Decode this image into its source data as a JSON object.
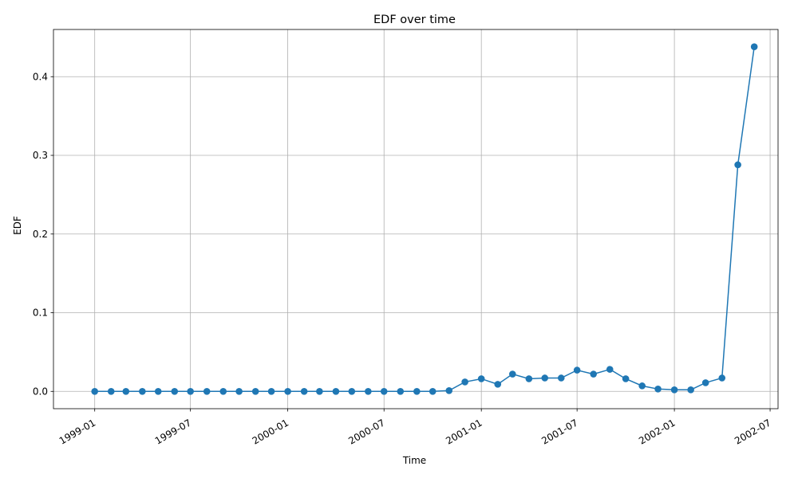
{
  "chart_data": {
    "type": "line",
    "title": "EDF over time",
    "xlabel": "Time",
    "ylabel": "EDF",
    "grid": true,
    "color": "#1f77b4",
    "marker": "circle",
    "xlim": [
      "1998-10-15",
      "2002-07-16"
    ],
    "ylim": [
      -0.022,
      0.46
    ],
    "x_ticks": [
      "1999-01",
      "1999-07",
      "2000-01",
      "2000-07",
      "2001-01",
      "2001-07",
      "2002-01",
      "2002-07"
    ],
    "y_ticks": [
      "0.0",
      "0.1",
      "0.2",
      "0.3",
      "0.4"
    ],
    "series": [
      {
        "x": [
          "1999-01-01",
          "1999-02-01",
          "1999-03-01",
          "1999-04-01",
          "1999-05-01",
          "1999-06-01",
          "1999-07-01",
          "1999-08-01",
          "1999-09-01",
          "1999-10-01",
          "1999-11-01",
          "1999-12-01",
          "2000-01-01",
          "2000-02-01",
          "2000-03-01",
          "2000-04-01",
          "2000-05-01",
          "2000-06-01",
          "2000-07-01",
          "2000-08-01",
          "2000-09-01",
          "2000-10-01",
          "2000-11-01",
          "2000-12-01",
          "2001-01-01",
          "2001-02-01",
          "2001-03-01",
          "2001-04-01",
          "2001-05-01",
          "2001-06-01",
          "2001-07-01",
          "2001-08-01",
          "2001-09-01",
          "2001-10-01",
          "2001-11-01",
          "2001-12-01",
          "2002-01-01",
          "2002-02-01",
          "2002-03-01",
          "2002-04-01",
          "2002-05-01",
          "2002-06-01"
        ],
        "values": [
          0.0,
          0.0,
          0.0,
          0.0,
          0.0,
          0.0,
          0.0,
          0.0,
          0.0,
          0.0,
          0.0,
          0.0,
          0.0,
          0.0,
          0.0,
          0.0,
          0.0,
          0.0,
          0.0,
          0.0,
          0.0,
          0.0,
          0.001,
          0.012,
          0.016,
          0.009,
          0.022,
          0.016,
          0.017,
          0.017,
          0.027,
          0.022,
          0.028,
          0.016,
          0.007,
          0.003,
          0.002,
          0.002,
          0.011,
          0.017,
          0.288,
          0.438
        ]
      }
    ]
  }
}
